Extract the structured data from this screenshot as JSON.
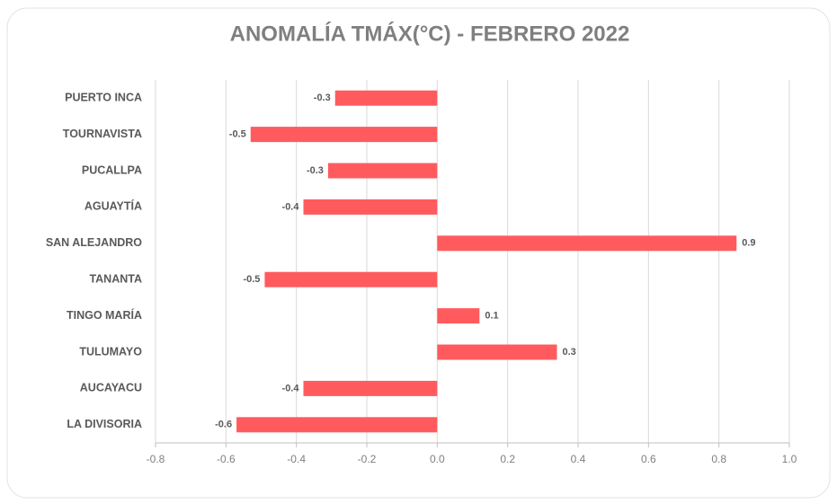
{
  "chart_data": {
    "type": "barh",
    "title": "ANOMALÍA TMÁX(°C) - FEBRERO 2022",
    "categories": [
      "PUERTO INCA",
      "TOURNAVISTA",
      "PUCALLPA",
      "AGUAYTÍA",
      "SAN ALEJANDRO",
      "TANANTA",
      "TINGO MARÍA",
      "TULUMAYO",
      "AUCAYACU",
      "LA DIVISORIA"
    ],
    "values": [
      -0.29,
      -0.53,
      -0.31,
      -0.38,
      0.85,
      -0.49,
      0.12,
      0.34,
      -0.38,
      -0.57
    ],
    "value_labels": [
      "-0.3",
      "-0.5",
      "-0.3",
      "-0.4",
      "0.9",
      "-0.5",
      "0.1",
      "0.3",
      "-0.4",
      "-0.6"
    ],
    "color": "#ff5b5e",
    "xlim": [
      -0.8,
      1.0
    ],
    "xticks": [
      -0.8,
      -0.6,
      -0.4,
      -0.2,
      {
        "value": 0,
        "label": "0.0"
      },
      0.2,
      0.4,
      0.6,
      0.8,
      {
        "value": 1.0,
        "label": "1.0"
      }
    ],
    "grid": true
  }
}
